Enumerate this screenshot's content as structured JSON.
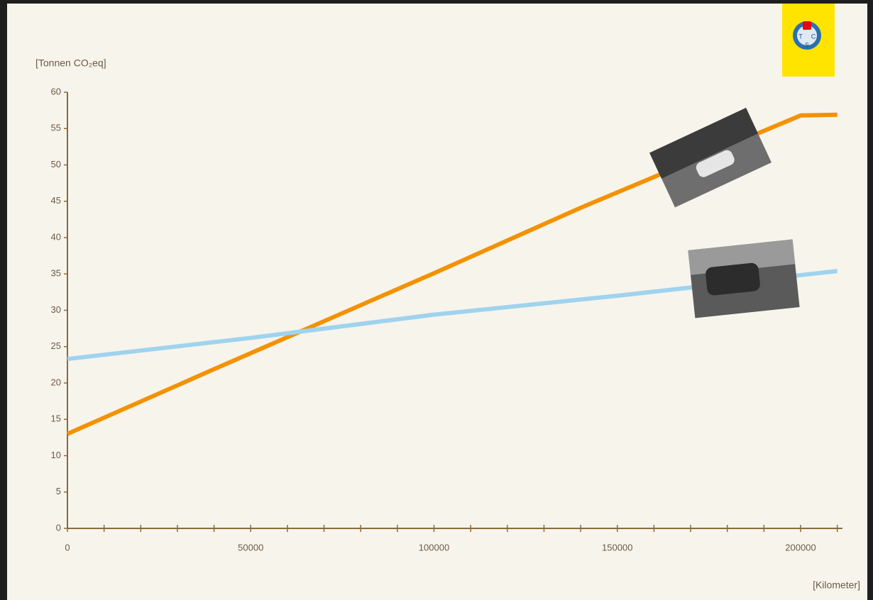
{
  "chart_data": {
    "type": "line",
    "y_label": "[Tonnen CO₂eq]",
    "x_label": "[Kilometer]",
    "logo": {
      "letters": [
        "T",
        "C",
        "S"
      ]
    },
    "series": [
      {
        "color": "#f39200",
        "x": [
          0,
          40000,
          100000,
          140000,
          200000,
          210000
        ],
        "values": [
          13,
          21.9,
          35.1,
          44.1,
          56.8,
          56.9
        ]
      },
      {
        "color": "#9fd3ee",
        "x": [
          0,
          50000,
          100000,
          150000,
          210000
        ],
        "values": [
          23.3,
          26.2,
          29.4,
          32,
          35.4
        ]
      }
    ],
    "xlim": [
      0,
      211400
    ],
    "xticks": [
      0,
      50000,
      100000,
      150000,
      200000
    ],
    "xminorticks": [
      10000,
      20000,
      30000,
      40000,
      60000,
      70000,
      80000,
      90000,
      110000,
      120000,
      130000,
      140000,
      160000,
      170000,
      180000,
      190000,
      210000
    ],
    "ylim": [
      0,
      60
    ],
    "yticks": [
      0,
      5,
      10,
      15,
      20,
      25,
      30,
      35,
      40,
      45,
      50,
      55,
      60
    ],
    "axis_color": "#8a6a3c"
  }
}
